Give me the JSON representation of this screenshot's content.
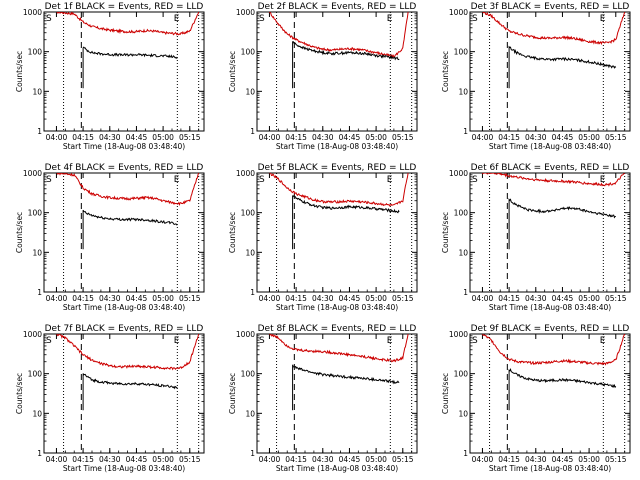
{
  "chart_data": [
    {
      "type": "line",
      "title": "Det 1f BLACK = Events, RED = LLD",
      "xlabel": "Start Time (18-Aug-08 03:48:40)",
      "ylabel": "Counts/sec",
      "x_ticks": [
        "04:00",
        "04:15",
        "04:30",
        "04:45",
        "05:00",
        "05:15"
      ],
      "y_ticks": [
        "1",
        "10",
        "100",
        "1000"
      ],
      "ylim": [
        1,
        1000
      ],
      "y_scale": "log",
      "markers": {
        "start": "S",
        "end": "E"
      },
      "series": [
        {
          "color": "#cc0000",
          "x": [
            "04:00",
            "04:10",
            "04:15",
            "04:20",
            "04:25",
            "04:30",
            "04:35",
            "04:40",
            "04:45",
            "04:50",
            "04:55",
            "05:00",
            "05:05",
            "05:10",
            "05:15",
            "05:20"
          ],
          "y": [
            1000,
            900,
            560,
            430,
            380,
            350,
            330,
            320,
            320,
            340,
            330,
            300,
            290,
            280,
            330,
            1000
          ]
        },
        {
          "color": "#000000",
          "x": [
            "04:15",
            "04:17",
            "04:20",
            "04:25",
            "04:30",
            "04:35",
            "04:40",
            "04:45",
            "04:50",
            "04:55",
            "05:00",
            "05:05",
            "05:08"
          ],
          "y": [
            130,
            110,
            95,
            88,
            85,
            83,
            83,
            84,
            82,
            80,
            78,
            75,
            70
          ]
        }
      ]
    },
    {
      "type": "line",
      "title": "Det 2f BLACK = Events, RED = LLD",
      "xlabel": "Start Time (18-Aug-08 03:48:40)",
      "ylabel": "Counts/sec",
      "x_ticks": [
        "04:00",
        "04:15",
        "04:30",
        "04:45",
        "05:00",
        "05:15"
      ],
      "y_ticks": [
        "1",
        "10",
        "100",
        "1000"
      ],
      "ylim": [
        1,
        1000
      ],
      "y_scale": "log",
      "markers": {
        "start": "S",
        "end": "E"
      },
      "series": [
        {
          "color": "#cc0000",
          "x": [
            "04:00",
            "04:05",
            "04:10",
            "04:15",
            "04:20",
            "04:25",
            "04:30",
            "04:35",
            "04:40",
            "04:45",
            "04:50",
            "04:55",
            "05:00",
            "05:05",
            "05:10",
            "05:15",
            "05:18"
          ],
          "y": [
            1000,
            500,
            280,
            200,
            160,
            130,
            115,
            110,
            115,
            120,
            115,
            105,
            95,
            85,
            75,
            120,
            1000
          ]
        },
        {
          "color": "#000000",
          "x": [
            "04:13",
            "04:15",
            "04:20",
            "04:25",
            "04:30",
            "04:35",
            "04:40",
            "04:45",
            "04:50",
            "04:55",
            "05:00",
            "05:05",
            "05:10",
            "05:13"
          ],
          "y": [
            180,
            150,
            120,
            105,
            95,
            90,
            92,
            95,
            92,
            88,
            80,
            75,
            70,
            65
          ]
        }
      ]
    },
    {
      "type": "line",
      "title": "Det 3f BLACK = Events, RED = LLD",
      "xlabel": "Start Time (18-Aug-08 03:48:40)",
      "ylabel": "Counts/sec",
      "x_ticks": [
        "04:00",
        "04:15",
        "04:30",
        "04:45",
        "05:00",
        "05:15"
      ],
      "y_ticks": [
        "1",
        "10",
        "100",
        "1000"
      ],
      "ylim": [
        1,
        1000
      ],
      "y_scale": "log",
      "markers": {
        "start": "S",
        "end": "E"
      },
      "series": [
        {
          "color": "#cc0000",
          "x": [
            "04:00",
            "04:05",
            "04:10",
            "04:15",
            "04:20",
            "04:25",
            "04:30",
            "04:35",
            "04:40",
            "04:45",
            "04:50",
            "04:55",
            "05:00",
            "05:05",
            "05:10",
            "05:15",
            "05:20"
          ],
          "y": [
            1000,
            800,
            500,
            330,
            280,
            250,
            230,
            220,
            220,
            230,
            220,
            200,
            180,
            170,
            165,
            200,
            1000
          ]
        },
        {
          "color": "#000000",
          "x": [
            "04:15",
            "04:17",
            "04:20",
            "04:25",
            "04:30",
            "04:35",
            "04:40",
            "04:45",
            "04:50",
            "04:55",
            "05:00",
            "05:05",
            "05:10",
            "05:15"
          ],
          "y": [
            130,
            110,
            90,
            75,
            68,
            65,
            64,
            66,
            64,
            60,
            55,
            50,
            45,
            40
          ]
        }
      ]
    },
    {
      "type": "line",
      "title": "Det 4f BLACK = Events, RED = LLD",
      "xlabel": "Start Time (18-Aug-08 03:48:40)",
      "ylabel": "Counts/sec",
      "x_ticks": [
        "04:00",
        "04:15",
        "04:30",
        "04:45",
        "05:00",
        "05:15"
      ],
      "y_ticks": [
        "1",
        "10",
        "100",
        "1000"
      ],
      "ylim": [
        1,
        1000
      ],
      "y_scale": "log",
      "markers": {
        "start": "S",
        "end": "E"
      },
      "series": [
        {
          "color": "#cc0000",
          "x": [
            "04:00",
            "04:10",
            "04:15",
            "04:20",
            "04:25",
            "04:30",
            "04:35",
            "04:40",
            "04:45",
            "04:50",
            "04:55",
            "05:00",
            "05:05",
            "05:10",
            "05:15",
            "05:20"
          ],
          "y": [
            1000,
            900,
            420,
            300,
            260,
            240,
            230,
            225,
            230,
            240,
            230,
            200,
            180,
            170,
            200,
            1000
          ]
        },
        {
          "color": "#000000",
          "x": [
            "04:15",
            "04:17",
            "04:20",
            "04:25",
            "04:30",
            "04:35",
            "04:40",
            "04:45",
            "04:50",
            "04:55",
            "05:00",
            "05:05",
            "05:08"
          ],
          "y": [
            110,
            95,
            85,
            75,
            70,
            68,
            67,
            68,
            66,
            62,
            58,
            55,
            50
          ]
        }
      ]
    },
    {
      "type": "line",
      "title": "Det 5f BLACK = Events, RED = LLD",
      "xlabel": "Start Time (18-Aug-08 03:48:40)",
      "ylabel": "Counts/sec",
      "x_ticks": [
        "04:00",
        "04:15",
        "04:30",
        "04:45",
        "05:00",
        "05:15"
      ],
      "y_ticks": [
        "1",
        "10",
        "100",
        "1000"
      ],
      "ylim": [
        1,
        1000
      ],
      "y_scale": "log",
      "markers": {
        "start": "S",
        "end": "E"
      },
      "series": [
        {
          "color": "#cc0000",
          "x": [
            "04:00",
            "04:05",
            "04:10",
            "04:15",
            "04:20",
            "04:25",
            "04:30",
            "04:35",
            "04:40",
            "04:45",
            "04:50",
            "04:55",
            "05:00",
            "05:05",
            "05:10",
            "05:15",
            "05:18"
          ],
          "y": [
            1000,
            700,
            420,
            300,
            250,
            210,
            190,
            185,
            190,
            195,
            190,
            180,
            170,
            160,
            150,
            200,
            1000
          ]
        },
        {
          "color": "#000000",
          "x": [
            "04:13",
            "04:15",
            "04:20",
            "04:25",
            "04:30",
            "04:35",
            "04:40",
            "04:45",
            "04:50",
            "04:55",
            "05:00",
            "05:05",
            "05:10",
            "05:13"
          ],
          "y": [
            280,
            230,
            180,
            150,
            135,
            130,
            135,
            140,
            138,
            132,
            125,
            118,
            110,
            105
          ]
        }
      ]
    },
    {
      "type": "line",
      "title": "Det 6f BLACK = Events, RED = LLD",
      "xlabel": "Start Time (18-Aug-08 03:48:40)",
      "ylabel": "Counts/sec",
      "x_ticks": [
        "04:00",
        "04:15",
        "04:30",
        "04:45",
        "05:00",
        "05:15"
      ],
      "y_ticks": [
        "1",
        "10",
        "100",
        "1000"
      ],
      "ylim": [
        1,
        1000
      ],
      "y_scale": "log",
      "markers": {
        "start": "S",
        "end": "E"
      },
      "series": [
        {
          "color": "#cc0000",
          "x": [
            "04:00",
            "04:05",
            "04:10",
            "04:15",
            "04:20",
            "04:25",
            "04:30",
            "04:35",
            "04:40",
            "04:45",
            "04:50",
            "04:55",
            "05:00",
            "05:05",
            "05:10",
            "05:15",
            "05:20"
          ],
          "y": [
            1000,
            1000,
            950,
            850,
            780,
            720,
            680,
            650,
            630,
            620,
            600,
            570,
            540,
            520,
            510,
            560,
            1000
          ]
        },
        {
          "color": "#000000",
          "x": [
            "04:15",
            "04:17",
            "04:20",
            "04:25",
            "04:30",
            "04:35",
            "04:40",
            "04:45",
            "04:50",
            "04:55",
            "05:00",
            "05:05",
            "05:10",
            "05:15"
          ],
          "y": [
            220,
            180,
            150,
            120,
            110,
            108,
            115,
            125,
            130,
            120,
            105,
            95,
            88,
            80
          ]
        }
      ]
    },
    {
      "type": "line",
      "title": "Det 7f BLACK = Events, RED = LLD",
      "xlabel": "Start Time (18-Aug-08 03:48:40)",
      "ylabel": "Counts/sec",
      "x_ticks": [
        "04:00",
        "04:15",
        "04:30",
        "04:45",
        "05:00",
        "05:15"
      ],
      "y_ticks": [
        "1",
        "10",
        "100",
        "1000"
      ],
      "ylim": [
        1,
        1000
      ],
      "y_scale": "log",
      "markers": {
        "start": "S",
        "end": "E"
      },
      "series": [
        {
          "color": "#cc0000",
          "x": [
            "04:00",
            "04:05",
            "04:10",
            "04:15",
            "04:20",
            "04:25",
            "04:30",
            "04:35",
            "04:40",
            "04:45",
            "04:50",
            "04:55",
            "05:00",
            "05:05",
            "05:10",
            "05:15",
            "05:20"
          ],
          "y": [
            1000,
            800,
            500,
            300,
            220,
            180,
            160,
            150,
            150,
            155,
            150,
            145,
            140,
            135,
            140,
            200,
            1000
          ]
        },
        {
          "color": "#000000",
          "x": [
            "04:15",
            "04:17",
            "04:20",
            "04:25",
            "04:30",
            "04:35",
            "04:40",
            "04:45",
            "04:50",
            "04:55",
            "05:00",
            "05:05",
            "05:08"
          ],
          "y": [
            100,
            85,
            70,
            62,
            58,
            56,
            55,
            56,
            54,
            52,
            50,
            47,
            45
          ]
        }
      ]
    },
    {
      "type": "line",
      "title": "Det 8f BLACK = Events, RED = LLD",
      "xlabel": "Start Time (18-Aug-08 03:48:40)",
      "ylabel": "Counts/sec",
      "x_ticks": [
        "04:00",
        "04:15",
        "04:30",
        "04:45",
        "05:00",
        "05:15"
      ],
      "y_ticks": [
        "1",
        "10",
        "100",
        "1000"
      ],
      "ylim": [
        1,
        1000
      ],
      "y_scale": "log",
      "markers": {
        "start": "S",
        "end": "E"
      },
      "series": [
        {
          "color": "#cc0000",
          "x": [
            "04:00",
            "04:05",
            "04:10",
            "04:15",
            "04:20",
            "04:25",
            "04:30",
            "04:35",
            "04:40",
            "04:45",
            "04:50",
            "04:55",
            "05:00",
            "05:05",
            "05:10",
            "05:15",
            "05:18"
          ],
          "y": [
            1000,
            800,
            500,
            400,
            380,
            370,
            360,
            340,
            320,
            300,
            280,
            260,
            240,
            220,
            210,
            250,
            1000
          ]
        },
        {
          "color": "#000000",
          "x": [
            "04:13",
            "04:15",
            "04:20",
            "04:25",
            "04:30",
            "04:35",
            "04:40",
            "04:45",
            "04:50",
            "04:55",
            "05:00",
            "05:05",
            "05:10",
            "05:13"
          ],
          "y": [
            160,
            140,
            120,
            105,
            95,
            90,
            85,
            82,
            78,
            74,
            70,
            66,
            62,
            60
          ]
        }
      ]
    },
    {
      "type": "line",
      "title": "Det 9f BLACK = Events, RED = LLD",
      "xlabel": "Start Time (18-Aug-08 03:48:40)",
      "ylabel": "Counts/sec",
      "x_ticks": [
        "04:00",
        "04:15",
        "04:30",
        "04:45",
        "05:00",
        "05:15"
      ],
      "y_ticks": [
        "1",
        "10",
        "100",
        "1000"
      ],
      "ylim": [
        1,
        1000
      ],
      "y_scale": "log",
      "markers": {
        "start": "S",
        "end": "E"
      },
      "series": [
        {
          "color": "#cc0000",
          "x": [
            "04:00",
            "04:05",
            "04:10",
            "04:15",
            "04:20",
            "04:25",
            "04:30",
            "04:35",
            "04:40",
            "04:45",
            "04:50",
            "04:55",
            "05:00",
            "05:05",
            "05:10",
            "05:15",
            "05:20"
          ],
          "y": [
            1000,
            700,
            350,
            230,
            200,
            190,
            185,
            190,
            200,
            210,
            205,
            195,
            185,
            180,
            180,
            220,
            1000
          ]
        },
        {
          "color": "#000000",
          "x": [
            "04:15",
            "04:17",
            "04:20",
            "04:25",
            "04:30",
            "04:35",
            "04:40",
            "04:45",
            "04:50",
            "04:55",
            "05:00",
            "05:05",
            "05:10",
            "05:15"
          ],
          "y": [
            130,
            110,
            90,
            75,
            68,
            66,
            68,
            70,
            68,
            64,
            60,
            56,
            52,
            48
          ]
        }
      ]
    }
  ]
}
